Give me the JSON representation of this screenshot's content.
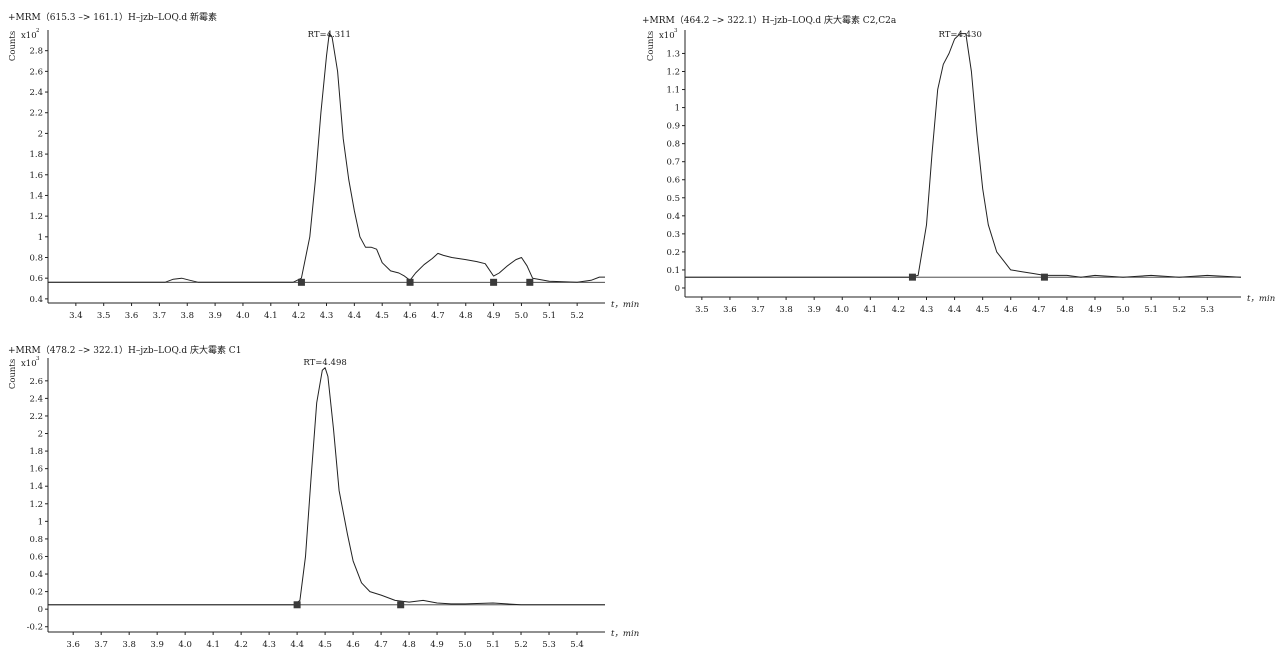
{
  "chart_data": [
    {
      "type": "line",
      "title": "+MRM（615.3 –> 161.1）H–jzb–LOQ.d 新霉素",
      "ylabel": "Counts",
      "y_exponent": "x10",
      "y_exponent_power": "2",
      "xlabel": "t，min",
      "peak_label": "RT=4.311",
      "xlim": [
        3.3,
        5.3
      ],
      "ylim": [
        0.36,
        3.0
      ],
      "xticks": [
        3.4,
        3.5,
        3.6,
        3.7,
        3.8,
        3.9,
        4.0,
        4.1,
        4.2,
        4.3,
        4.4,
        4.5,
        4.6,
        4.7,
        4.8,
        4.9,
        5.0,
        5.1,
        5.2
      ],
      "yticks": [
        0.4,
        0.6,
        0.8,
        1.0,
        1.2,
        1.4,
        1.6,
        1.8,
        2.0,
        2.2,
        2.4,
        2.6,
        2.8
      ],
      "baseline": 0.56,
      "markers": [
        4.21,
        4.6,
        4.9,
        5.03
      ],
      "series": [
        {
          "x": [
            3.3,
            3.72,
            3.75,
            3.78,
            3.81,
            3.84,
            4.18,
            4.21,
            4.24,
            4.26,
            4.28,
            4.3,
            4.31,
            4.32,
            4.34,
            4.36,
            4.38,
            4.4,
            4.42,
            4.44,
            4.46,
            4.48,
            4.5,
            4.53,
            4.56,
            4.58,
            4.6,
            4.62,
            4.65,
            4.68,
            4.7,
            4.72,
            4.75,
            4.8,
            4.84,
            4.87,
            4.9,
            4.92,
            4.95,
            4.98,
            5.0,
            5.02,
            5.04,
            5.1,
            5.2,
            5.25,
            5.28,
            5.3
          ],
          "y": [
            0.56,
            0.56,
            0.59,
            0.6,
            0.58,
            0.56,
            0.56,
            0.6,
            1.0,
            1.55,
            2.2,
            2.75,
            2.97,
            2.93,
            2.6,
            1.95,
            1.55,
            1.25,
            1.0,
            0.9,
            0.9,
            0.88,
            0.75,
            0.67,
            0.65,
            0.62,
            0.58,
            0.65,
            0.73,
            0.79,
            0.84,
            0.82,
            0.8,
            0.78,
            0.76,
            0.74,
            0.62,
            0.65,
            0.72,
            0.78,
            0.8,
            0.72,
            0.6,
            0.57,
            0.56,
            0.58,
            0.61,
            0.61
          ]
        }
      ]
    },
    {
      "type": "line",
      "title": "+MRM（464.2 –> 322.1）H–jzb–LOQ.d 庆大霉素 C2,C2a",
      "ylabel": "Counts",
      "y_exponent": "x10",
      "y_exponent_power": "3",
      "xlabel": "t，min",
      "peak_label": "RT=4.430",
      "xlim": [
        3.44,
        5.42
      ],
      "ylim": [
        -0.05,
        1.43
      ],
      "xticks": [
        3.5,
        3.6,
        3.7,
        3.8,
        3.9,
        4.0,
        4.1,
        4.2,
        4.3,
        4.4,
        4.5,
        4.6,
        4.7,
        4.8,
        4.9,
        5.0,
        5.1,
        5.2,
        5.3
      ],
      "yticks": [
        0,
        0.1,
        0.2,
        0.3,
        0.4,
        0.5,
        0.6,
        0.7,
        0.8,
        0.9,
        1.0,
        1.1,
        1.2,
        1.3
      ],
      "baseline": 0.06,
      "markers": [
        4.25,
        4.72
      ],
      "series": [
        {
          "x": [
            3.44,
            3.6,
            4.0,
            4.24,
            4.27,
            4.3,
            4.32,
            4.34,
            4.36,
            4.38,
            4.4,
            4.42,
            4.44,
            4.46,
            4.48,
            4.5,
            4.52,
            4.55,
            4.58,
            4.6,
            4.64,
            4.68,
            4.72,
            4.8,
            4.85,
            4.9,
            5.0,
            5.1,
            5.2,
            5.3,
            5.42
          ],
          "y": [
            0.06,
            0.06,
            0.06,
            0.06,
            0.07,
            0.35,
            0.75,
            1.1,
            1.24,
            1.3,
            1.38,
            1.41,
            1.41,
            1.2,
            0.85,
            0.55,
            0.35,
            0.2,
            0.14,
            0.1,
            0.09,
            0.08,
            0.07,
            0.07,
            0.06,
            0.07,
            0.06,
            0.07,
            0.06,
            0.07,
            0.06
          ]
        }
      ]
    },
    {
      "type": "line",
      "title": "+MRM（478.2 –> 322.1）H–jzb–LOQ.d 庆大霉素 C1",
      "ylabel": "Counts",
      "y_exponent": "x10",
      "y_exponent_power": "3",
      "xlabel": "t，min",
      "peak_label": "RT=4.498",
      "xlim": [
        3.51,
        5.5
      ],
      "ylim": [
        -0.26,
        2.86
      ],
      "xticks": [
        3.6,
        3.7,
        3.8,
        3.9,
        4.0,
        4.1,
        4.2,
        4.3,
        4.4,
        4.5,
        4.6,
        4.7,
        4.8,
        4.9,
        5.0,
        5.1,
        5.2,
        5.3,
        5.4
      ],
      "yticks": [
        -0.2,
        0,
        0.2,
        0.4,
        0.6,
        0.8,
        1.0,
        1.2,
        1.4,
        1.6,
        1.8,
        2.0,
        2.2,
        2.4,
        2.6
      ],
      "baseline": 0.05,
      "markers": [
        4.4,
        4.77
      ],
      "series": [
        {
          "x": [
            3.51,
            3.8,
            4.2,
            4.39,
            4.41,
            4.43,
            4.45,
            4.47,
            4.49,
            4.5,
            4.51,
            4.53,
            4.55,
            4.58,
            4.6,
            4.63,
            4.66,
            4.7,
            4.75,
            4.8,
            4.85,
            4.9,
            4.95,
            5.0,
            5.1,
            5.2,
            5.3,
            5.5
          ],
          "y": [
            0.05,
            0.05,
            0.05,
            0.05,
            0.1,
            0.6,
            1.5,
            2.35,
            2.72,
            2.75,
            2.65,
            2.05,
            1.35,
            0.85,
            0.55,
            0.3,
            0.2,
            0.16,
            0.1,
            0.08,
            0.1,
            0.07,
            0.06,
            0.06,
            0.07,
            0.05,
            0.05,
            0.05
          ]
        }
      ]
    }
  ]
}
